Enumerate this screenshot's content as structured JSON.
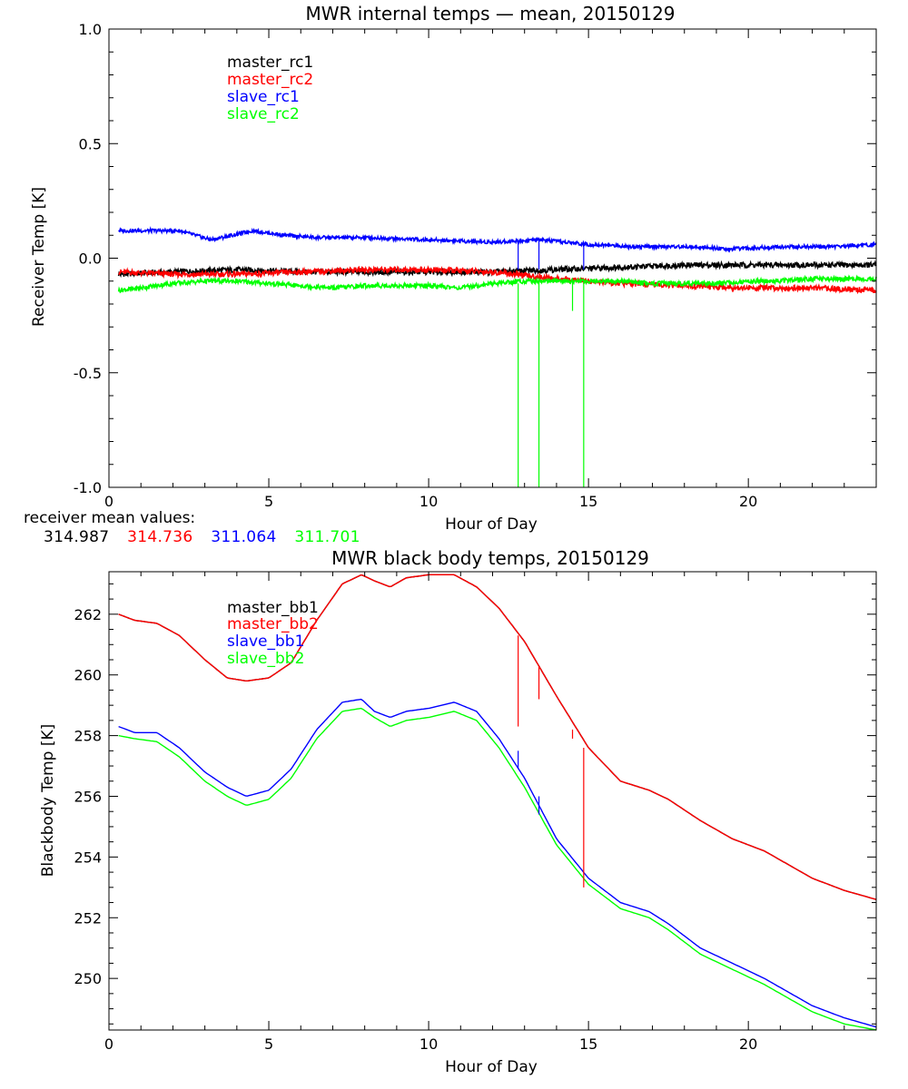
{
  "colors": {
    "black": "#000000",
    "red": "#ff0000",
    "blue": "#0000ff",
    "green": "#00ff00"
  },
  "chart_data": [
    {
      "type": "line",
      "title": "MWR internal temps — mean, 20150129",
      "xlabel": "Hour of Day",
      "ylabel": "Receiver Temp [K]",
      "xlim": [
        0,
        24
      ],
      "ylim": [
        -1.0,
        1.0
      ],
      "xticks": [
        0,
        5,
        10,
        15,
        20
      ],
      "xtick_labels": [
        "0",
        "5",
        "10",
        "15",
        "20"
      ],
      "yticks": [
        -1.0,
        -0.5,
        0.0,
        0.5,
        1.0
      ],
      "ytick_labels": [
        "-1.0",
        "-0.5",
        "0.0",
        "0.5",
        "1.0"
      ],
      "legend_position": "top-left",
      "series": [
        {
          "name": "master_rc1",
          "color": "#000000",
          "x": [
            0.3,
            2,
            4,
            6,
            8,
            10,
            12,
            14,
            16,
            18,
            20,
            22,
            24
          ],
          "values": [
            -0.07,
            -0.06,
            -0.05,
            -0.06,
            -0.06,
            -0.06,
            -0.06,
            -0.05,
            -0.04,
            -0.03,
            -0.03,
            -0.03,
            -0.03
          ]
        },
        {
          "name": "master_rc2",
          "color": "#ff0000",
          "x": [
            0.3,
            2,
            4,
            6,
            8,
            10,
            12,
            14,
            16,
            18,
            20,
            22,
            24
          ],
          "values": [
            -0.06,
            -0.07,
            -0.07,
            -0.06,
            -0.05,
            -0.05,
            -0.06,
            -0.09,
            -0.11,
            -0.12,
            -0.13,
            -0.13,
            -0.14
          ]
        },
        {
          "name": "slave_rc1",
          "color": "#0000ff",
          "x": [
            0.3,
            1,
            2.2,
            3.2,
            4.5,
            5.5,
            6.5,
            8,
            10,
            12,
            13.5,
            15,
            16.5,
            18,
            19.5,
            21,
            22.5,
            24
          ],
          "values": [
            0.12,
            0.12,
            0.12,
            0.08,
            0.12,
            0.1,
            0.09,
            0.09,
            0.08,
            0.07,
            0.08,
            0.06,
            0.05,
            0.05,
            0.04,
            0.05,
            0.05,
            0.06
          ]
        },
        {
          "name": "slave_rc2",
          "color": "#00ff00",
          "x": [
            0.3,
            1,
            2,
            3,
            4,
            5,
            6,
            7,
            8,
            9,
            10,
            11,
            12,
            13,
            14,
            15,
            16,
            17,
            18,
            19,
            20,
            21,
            22,
            23,
            24
          ],
          "values": [
            -0.14,
            -0.13,
            -0.11,
            -0.1,
            -0.1,
            -0.11,
            -0.12,
            -0.13,
            -0.12,
            -0.12,
            -0.12,
            -0.13,
            -0.11,
            -0.1,
            -0.1,
            -0.1,
            -0.1,
            -0.11,
            -0.11,
            -0.11,
            -0.1,
            -0.1,
            -0.09,
            -0.09,
            -0.09
          ]
        }
      ],
      "spikes": [
        {
          "series": "slave_rc2",
          "x": 12.8,
          "from": -0.11,
          "to": -1.0
        },
        {
          "series": "slave_rc2",
          "x": 13.45,
          "from": -0.1,
          "to": -1.0
        },
        {
          "series": "slave_rc2",
          "x": 14.5,
          "from": -0.1,
          "to": -0.23
        },
        {
          "series": "slave_rc2",
          "x": 14.85,
          "from": -0.1,
          "to": -1.0
        },
        {
          "series": "slave_rc1",
          "x": 12.8,
          "from": 0.07,
          "to": -0.05
        },
        {
          "series": "slave_rc1",
          "x": 13.45,
          "from": 0.08,
          "to": -0.05
        },
        {
          "series": "slave_rc1",
          "x": 14.85,
          "from": 0.06,
          "to": -0.05
        }
      ],
      "mean_label": "receiver mean values:",
      "mean_values": [
        {
          "value": "314.987",
          "color": "#000000"
        },
        {
          "value": "314.736",
          "color": "#ff0000"
        },
        {
          "value": "311.064",
          "color": "#0000ff"
        },
        {
          "value": "311.701",
          "color": "#00ff00"
        }
      ]
    },
    {
      "type": "line",
      "title": "MWR black body temps, 20150129",
      "xlabel": "Hour of Day",
      "ylabel": "Blackbody Temp [K]",
      "xlim": [
        0,
        24
      ],
      "ylim": [
        248.3,
        263.4
      ],
      "xticks": [
        0,
        5,
        10,
        15,
        20
      ],
      "xtick_labels": [
        "0",
        "5",
        "10",
        "15",
        "20"
      ],
      "yticks": [
        250,
        252,
        254,
        256,
        258,
        260,
        262
      ],
      "ytick_labels": [
        "250",
        "252",
        "254",
        "256",
        "258",
        "260",
        "262"
      ],
      "legend_position": "top-left",
      "series": [
        {
          "name": "master_bb1",
          "color": "#000000",
          "x": [
            0.3,
            0.8,
            1.5,
            2.2,
            3,
            3.7,
            4.3,
            5,
            5.7,
            6.5,
            7.3,
            7.9,
            8.3,
            8.8,
            9.3,
            10,
            10.8,
            11.5,
            12.2,
            13,
            14,
            15,
            16,
            16.9,
            17.5,
            18.5,
            19.5,
            20.5,
            21,
            22,
            23,
            24
          ],
          "values": [
            262.0,
            261.8,
            261.7,
            261.3,
            260.5,
            259.9,
            259.8,
            259.9,
            260.4,
            261.8,
            263.0,
            263.3,
            263.1,
            262.9,
            263.2,
            263.3,
            263.3,
            262.9,
            262.2,
            261.1,
            259.3,
            257.6,
            256.5,
            256.2,
            255.9,
            255.2,
            254.6,
            254.2,
            253.9,
            253.3,
            252.9,
            252.6
          ]
        },
        {
          "name": "master_bb2",
          "color": "#ff0000",
          "x": [
            0.3,
            0.8,
            1.5,
            2.2,
            3,
            3.7,
            4.3,
            5,
            5.7,
            6.5,
            7.3,
            7.9,
            8.3,
            8.8,
            9.3,
            10,
            10.8,
            11.5,
            12.2,
            13,
            14,
            15,
            16,
            16.9,
            17.5,
            18.5,
            19.5,
            20.5,
            21,
            22,
            23,
            24
          ],
          "values": [
            262.0,
            261.8,
            261.7,
            261.3,
            260.5,
            259.9,
            259.8,
            259.9,
            260.4,
            261.8,
            263.0,
            263.3,
            263.1,
            262.9,
            263.2,
            263.3,
            263.3,
            262.9,
            262.2,
            261.1,
            259.3,
            257.6,
            256.5,
            256.2,
            255.9,
            255.2,
            254.6,
            254.2,
            253.9,
            253.3,
            252.9,
            252.6
          ]
        },
        {
          "name": "slave_bb1",
          "color": "#0000ff",
          "x": [
            0.3,
            0.8,
            1.5,
            2.2,
            3,
            3.7,
            4.3,
            5,
            5.7,
            6.5,
            7.3,
            7.9,
            8.3,
            8.8,
            9.3,
            10,
            10.8,
            11.5,
            12.2,
            13,
            14,
            15,
            16,
            16.9,
            17.5,
            18.5,
            19.5,
            20.5,
            21,
            22,
            23,
            24
          ],
          "values": [
            258.3,
            258.1,
            258.1,
            257.6,
            256.8,
            256.3,
            256.0,
            256.2,
            256.9,
            258.2,
            259.1,
            259.2,
            258.8,
            258.6,
            258.8,
            258.9,
            259.1,
            258.8,
            257.9,
            256.6,
            254.6,
            253.3,
            252.5,
            252.2,
            251.8,
            251.0,
            250.5,
            250.0,
            249.7,
            249.1,
            248.7,
            248.4
          ]
        },
        {
          "name": "slave_bb2",
          "color": "#00ff00",
          "x": [
            0.3,
            0.8,
            1.5,
            2.2,
            3,
            3.7,
            4.3,
            5,
            5.7,
            6.5,
            7.3,
            7.9,
            8.3,
            8.8,
            9.3,
            10,
            10.8,
            11.5,
            12.2,
            13,
            14,
            15,
            16,
            16.9,
            17.5,
            18.5,
            19.5,
            20.5,
            21,
            22,
            23,
            24
          ],
          "values": [
            258.0,
            257.9,
            257.8,
            257.3,
            256.5,
            256.0,
            255.7,
            255.9,
            256.6,
            257.9,
            258.8,
            258.9,
            258.6,
            258.3,
            258.5,
            258.6,
            258.8,
            258.5,
            257.6,
            256.3,
            254.4,
            253.1,
            252.3,
            252.0,
            251.6,
            250.8,
            250.3,
            249.8,
            249.5,
            248.9,
            248.5,
            248.3
          ]
        }
      ],
      "spikes": [
        {
          "series": "master_bb2",
          "x": 12.8,
          "from": 261.3,
          "to": 258.3
        },
        {
          "series": "master_bb2",
          "x": 13.45,
          "from": 260.3,
          "to": 259.2
        },
        {
          "series": "master_bb2",
          "x": 14.5,
          "from": 258.2,
          "to": 257.9
        },
        {
          "series": "master_bb2",
          "x": 14.85,
          "from": 257.6,
          "to": 253.0
        },
        {
          "series": "slave_bb1",
          "x": 12.8,
          "from": 257.5,
          "to": 256.9
        },
        {
          "series": "slave_bb1",
          "x": 13.45,
          "from": 256.0,
          "to": 255.4
        }
      ]
    }
  ]
}
